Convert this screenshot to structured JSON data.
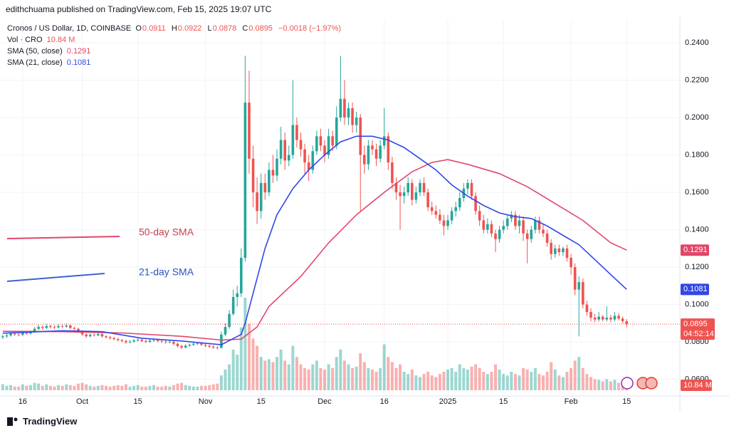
{
  "header": {
    "text": "edithchuama published on TradingView.com, Feb 15, 2025 19:07 UTC"
  },
  "chart_data": {
    "type": "candlestick",
    "title": "Cronos / US Dollar, 1D, COINBASE",
    "ohlc_labels": [
      "O",
      "H",
      "L",
      "C"
    ],
    "change": "−0.0018 (−1.97%)",
    "up_color": "#26a69a",
    "down_color": "#ef5350",
    "candles": [
      [
        0.0825,
        0.084,
        0.0815,
        0.083
      ],
      [
        0.083,
        0.0845,
        0.0822,
        0.0835
      ],
      [
        0.0835,
        0.0852,
        0.0828,
        0.0845
      ],
      [
        0.0845,
        0.085,
        0.0832,
        0.084
      ],
      [
        0.084,
        0.0848,
        0.083,
        0.0838
      ],
      [
        0.0838,
        0.0858,
        0.0832,
        0.085
      ],
      [
        0.085,
        0.0855,
        0.0838,
        0.0845
      ],
      [
        0.0845,
        0.0862,
        0.084,
        0.0855
      ],
      [
        0.0855,
        0.088,
        0.085,
        0.087
      ],
      [
        0.087,
        0.0892,
        0.0862,
        0.088
      ],
      [
        0.088,
        0.0888,
        0.0866,
        0.0875
      ],
      [
        0.0875,
        0.0895,
        0.087,
        0.0885
      ],
      [
        0.0885,
        0.0892,
        0.0872,
        0.088
      ],
      [
        0.088,
        0.089,
        0.0868,
        0.0878
      ],
      [
        0.0878,
        0.0895,
        0.0872,
        0.0885
      ],
      [
        0.0885,
        0.0893,
        0.0874,
        0.0882
      ],
      [
        0.0882,
        0.09,
        0.0876,
        0.0888
      ],
      [
        0.0888,
        0.0893,
        0.0868,
        0.0875
      ],
      [
        0.0875,
        0.0882,
        0.0862,
        0.087
      ],
      [
        0.087,
        0.0876,
        0.0848,
        0.0855
      ],
      [
        0.0855,
        0.0862,
        0.0832,
        0.084
      ],
      [
        0.084,
        0.0846,
        0.0822,
        0.083
      ],
      [
        0.083,
        0.0846,
        0.0825,
        0.0838
      ],
      [
        0.0838,
        0.0845,
        0.0828,
        0.0835
      ],
      [
        0.0835,
        0.085,
        0.083,
        0.0842
      ],
      [
        0.0842,
        0.0848,
        0.0822,
        0.083
      ],
      [
        0.083,
        0.0836,
        0.0818,
        0.0825
      ],
      [
        0.0825,
        0.0832,
        0.0812,
        0.082
      ],
      [
        0.082,
        0.0828,
        0.0808,
        0.0815
      ],
      [
        0.0815,
        0.0822,
        0.0802,
        0.081
      ],
      [
        0.081,
        0.0816,
        0.0798,
        0.0805
      ],
      [
        0.0805,
        0.0812,
        0.079,
        0.0798
      ],
      [
        0.0798,
        0.081,
        0.0792,
        0.0802
      ],
      [
        0.0802,
        0.0815,
        0.0796,
        0.0808
      ],
      [
        0.0808,
        0.082,
        0.0802,
        0.0812
      ],
      [
        0.0812,
        0.0818,
        0.0798,
        0.0805
      ],
      [
        0.0805,
        0.0812,
        0.0794,
        0.08
      ],
      [
        0.08,
        0.0815,
        0.0795,
        0.0807
      ],
      [
        0.0807,
        0.0818,
        0.08,
        0.081
      ],
      [
        0.081,
        0.0815,
        0.0798,
        0.0805
      ],
      [
        0.0805,
        0.0812,
        0.0795,
        0.0802
      ],
      [
        0.0802,
        0.0808,
        0.079,
        0.0798
      ],
      [
        0.0798,
        0.0808,
        0.0792,
        0.08
      ],
      [
        0.08,
        0.0805,
        0.0782,
        0.079
      ],
      [
        0.079,
        0.0796,
        0.077,
        0.0778
      ],
      [
        0.0778,
        0.0785,
        0.0762,
        0.077
      ],
      [
        0.077,
        0.0788,
        0.0765,
        0.078
      ],
      [
        0.078,
        0.0792,
        0.0775,
        0.0785
      ],
      [
        0.0785,
        0.0798,
        0.0778,
        0.079
      ],
      [
        0.079,
        0.08,
        0.0784,
        0.0792
      ],
      [
        0.0792,
        0.0798,
        0.0778,
        0.0785
      ],
      [
        0.0785,
        0.079,
        0.0772,
        0.078
      ],
      [
        0.078,
        0.0786,
        0.0768,
        0.0775
      ],
      [
        0.0775,
        0.0782,
        0.0762,
        0.077
      ],
      [
        0.077,
        0.0778,
        0.076,
        0.0768
      ],
      [
        0.0768,
        0.0855,
        0.0765,
        0.084
      ],
      [
        0.084,
        0.09,
        0.083,
        0.088
      ],
      [
        0.088,
        0.097,
        0.087,
        0.095
      ],
      [
        0.095,
        0.108,
        0.094,
        0.104
      ],
      [
        0.104,
        0.11,
        0.099,
        0.106
      ],
      [
        0.106,
        0.13,
        0.104,
        0.125
      ],
      [
        0.125,
        0.233,
        0.123,
        0.208
      ],
      [
        0.208,
        0.225,
        0.17,
        0.178
      ],
      [
        0.178,
        0.185,
        0.152,
        0.16
      ],
      [
        0.16,
        0.168,
        0.143,
        0.15
      ],
      [
        0.15,
        0.17,
        0.146,
        0.165
      ],
      [
        0.165,
        0.17,
        0.156,
        0.16
      ],
      [
        0.16,
        0.176,
        0.158,
        0.172
      ],
      [
        0.172,
        0.18,
        0.165,
        0.169
      ],
      [
        0.169,
        0.183,
        0.166,
        0.178
      ],
      [
        0.178,
        0.195,
        0.175,
        0.188
      ],
      [
        0.188,
        0.192,
        0.172,
        0.177
      ],
      [
        0.177,
        0.185,
        0.174,
        0.18
      ],
      [
        0.18,
        0.22,
        0.178,
        0.196
      ],
      [
        0.196,
        0.2,
        0.184,
        0.188
      ],
      [
        0.188,
        0.192,
        0.179,
        0.183
      ],
      [
        0.183,
        0.186,
        0.17,
        0.176
      ],
      [
        0.176,
        0.18,
        0.166,
        0.172
      ],
      [
        0.172,
        0.185,
        0.17,
        0.182
      ],
      [
        0.182,
        0.193,
        0.18,
        0.19
      ],
      [
        0.19,
        0.194,
        0.182,
        0.185
      ],
      [
        0.185,
        0.188,
        0.176,
        0.18
      ],
      [
        0.18,
        0.194,
        0.178,
        0.19
      ],
      [
        0.19,
        0.193,
        0.182,
        0.185
      ],
      [
        0.185,
        0.206,
        0.183,
        0.2
      ],
      [
        0.2,
        0.233,
        0.198,
        0.21
      ],
      [
        0.21,
        0.22,
        0.196,
        0.2
      ],
      [
        0.2,
        0.208,
        0.196,
        0.205
      ],
      [
        0.205,
        0.208,
        0.192,
        0.196
      ],
      [
        0.196,
        0.203,
        0.192,
        0.2
      ],
      [
        0.2,
        0.202,
        0.15,
        0.18
      ],
      [
        0.18,
        0.185,
        0.17,
        0.175
      ],
      [
        0.175,
        0.188,
        0.172,
        0.185
      ],
      [
        0.185,
        0.188,
        0.18,
        0.183
      ],
      [
        0.183,
        0.186,
        0.174,
        0.178
      ],
      [
        0.178,
        0.188,
        0.176,
        0.185
      ],
      [
        0.185,
        0.205,
        0.183,
        0.19
      ],
      [
        0.19,
        0.192,
        0.172,
        0.176
      ],
      [
        0.176,
        0.179,
        0.162,
        0.165
      ],
      [
        0.165,
        0.168,
        0.156,
        0.16
      ],
      [
        0.16,
        0.164,
        0.14,
        0.158
      ],
      [
        0.158,
        0.163,
        0.154,
        0.16
      ],
      [
        0.16,
        0.168,
        0.158,
        0.165
      ],
      [
        0.165,
        0.167,
        0.153,
        0.156
      ],
      [
        0.156,
        0.163,
        0.154,
        0.16
      ],
      [
        0.16,
        0.167,
        0.158,
        0.165
      ],
      [
        0.165,
        0.168,
        0.158,
        0.16
      ],
      [
        0.16,
        0.162,
        0.15,
        0.152
      ],
      [
        0.152,
        0.155,
        0.148,
        0.15
      ],
      [
        0.15,
        0.153,
        0.146,
        0.148
      ],
      [
        0.148,
        0.151,
        0.143,
        0.145
      ],
      [
        0.145,
        0.148,
        0.137,
        0.142
      ],
      [
        0.142,
        0.148,
        0.14,
        0.145
      ],
      [
        0.145,
        0.152,
        0.143,
        0.15
      ],
      [
        0.15,
        0.155,
        0.147,
        0.152
      ],
      [
        0.152,
        0.16,
        0.15,
        0.157
      ],
      [
        0.157,
        0.165,
        0.155,
        0.162
      ],
      [
        0.162,
        0.167,
        0.159,
        0.165
      ],
      [
        0.165,
        0.167,
        0.156,
        0.158
      ],
      [
        0.158,
        0.16,
        0.148,
        0.15
      ],
      [
        0.15,
        0.153,
        0.142,
        0.145
      ],
      [
        0.145,
        0.148,
        0.138,
        0.14
      ],
      [
        0.14,
        0.146,
        0.138,
        0.143
      ],
      [
        0.143,
        0.145,
        0.136,
        0.138
      ],
      [
        0.138,
        0.14,
        0.128,
        0.135
      ],
      [
        0.135,
        0.142,
        0.133,
        0.14
      ],
      [
        0.14,
        0.145,
        0.138,
        0.142
      ],
      [
        0.142,
        0.148,
        0.14,
        0.146
      ],
      [
        0.146,
        0.15,
        0.144,
        0.148
      ],
      [
        0.148,
        0.15,
        0.14,
        0.142
      ],
      [
        0.142,
        0.148,
        0.138,
        0.145
      ],
      [
        0.145,
        0.147,
        0.134,
        0.138
      ],
      [
        0.138,
        0.14,
        0.122,
        0.135
      ],
      [
        0.135,
        0.142,
        0.133,
        0.14
      ],
      [
        0.14,
        0.147,
        0.138,
        0.145
      ],
      [
        0.145,
        0.147,
        0.138,
        0.14
      ],
      [
        0.14,
        0.143,
        0.136,
        0.138
      ],
      [
        0.138,
        0.14,
        0.131,
        0.133
      ],
      [
        0.133,
        0.135,
        0.124,
        0.127
      ],
      [
        0.127,
        0.132,
        0.125,
        0.13
      ],
      [
        0.13,
        0.132,
        0.126,
        0.128
      ],
      [
        0.128,
        0.131,
        0.126,
        0.13
      ],
      [
        0.13,
        0.132,
        0.123,
        0.125
      ],
      [
        0.125,
        0.127,
        0.116,
        0.12
      ],
      [
        0.12,
        0.122,
        0.105,
        0.108
      ],
      [
        0.108,
        0.115,
        0.083,
        0.112
      ],
      [
        0.112,
        0.114,
        0.098,
        0.1
      ],
      [
        0.1,
        0.102,
        0.094,
        0.096
      ],
      [
        0.096,
        0.098,
        0.091,
        0.093
      ],
      [
        0.093,
        0.095,
        0.0905,
        0.092
      ],
      [
        0.092,
        0.096,
        0.091,
        0.0935
      ],
      [
        0.0935,
        0.0945,
        0.091,
        0.092
      ],
      [
        0.092,
        0.099,
        0.091,
        0.093
      ],
      [
        0.093,
        0.0945,
        0.0905,
        0.092
      ],
      [
        0.092,
        0.096,
        0.091,
        0.094
      ],
      [
        0.094,
        0.0955,
        0.0915,
        0.0925
      ],
      [
        0.0925,
        0.0935,
        0.09,
        0.0911
      ],
      [
        0.0911,
        0.0922,
        0.0878,
        0.0895
      ]
    ],
    "volume": {
      "name": "Vol · CRO",
      "last_label": "10.84 M",
      "values": [
        8,
        6,
        7,
        5,
        5,
        8,
        6,
        7,
        10,
        9,
        6,
        8,
        6,
        5,
        7,
        6,
        8,
        7,
        6,
        9,
        10,
        8,
        6,
        5,
        6,
        7,
        6,
        5,
        6,
        7,
        6,
        8,
        5,
        6,
        7,
        5,
        5,
        6,
        7,
        5,
        5,
        6,
        5,
        7,
        9,
        10,
        7,
        6,
        5,
        5,
        6,
        6,
        7,
        8,
        9,
        20,
        28,
        35,
        55,
        48,
        85,
        125,
        90,
        70,
        60,
        45,
        40,
        42,
        38,
        45,
        55,
        40,
        35,
        60,
        45,
        35,
        30,
        28,
        35,
        40,
        30,
        28,
        35,
        30,
        45,
        55,
        40,
        35,
        30,
        32,
        50,
        38,
        30,
        28,
        25,
        30,
        62,
        45,
        38,
        30,
        35,
        25,
        22,
        28,
        20,
        18,
        22,
        25,
        20,
        18,
        22,
        25,
        28,
        30,
        25,
        35,
        30,
        28,
        32,
        35,
        30,
        25,
        22,
        25,
        35,
        28,
        22,
        20,
        25,
        22,
        20,
        30,
        28,
        25,
        30,
        22,
        20,
        25,
        38,
        28,
        20,
        18,
        25,
        30,
        40,
        45,
        30,
        22,
        18,
        15,
        14,
        12,
        15,
        12,
        14,
        10,
        11,
        10.84
      ]
    },
    "series": [
      {
        "name": "SMA (50, close)",
        "color": "#e2466a",
        "x": [
          0,
          15,
          30,
          45,
          55,
          60,
          64,
          67,
          71,
          75,
          82,
          89,
          96,
          103,
          108,
          112,
          117,
          125,
          132,
          139,
          146,
          153,
          157
        ],
        "values": [
          0.0857,
          0.0855,
          0.0848,
          0.083,
          0.081,
          0.0815,
          0.088,
          0.099,
          0.107,
          0.115,
          0.133,
          0.148,
          0.16,
          0.171,
          0.176,
          0.1775,
          0.175,
          0.17,
          0.163,
          0.154,
          0.145,
          0.133,
          0.1291
        ]
      },
      {
        "name": "SMA (21, close)",
        "color": "#3246e6",
        "x": [
          0,
          15,
          25,
          35,
          45,
          55,
          60,
          61,
          63,
          66,
          69,
          73,
          77,
          81,
          85,
          89,
          93,
          97,
          101,
          105,
          109,
          113,
          117,
          121,
          125,
          129,
          133,
          137,
          141,
          145,
          149,
          153,
          157
        ],
        "values": [
          0.0847,
          0.086,
          0.0855,
          0.082,
          0.0805,
          0.0785,
          0.084,
          0.09,
          0.106,
          0.13,
          0.148,
          0.162,
          0.172,
          0.18,
          0.187,
          0.19,
          0.19,
          0.188,
          0.184,
          0.178,
          0.172,
          0.164,
          0.158,
          0.153,
          0.149,
          0.147,
          0.146,
          0.142,
          0.137,
          0.132,
          0.124,
          0.116,
          0.1081
        ]
      }
    ],
    "annotations": [
      "50-day SMA",
      "21-day SMA"
    ],
    "countdown": "04:52:14",
    "xlim": [
      -0.7,
      170.4
    ],
    "xticks": [
      {
        "value": 5,
        "label": "16"
      },
      {
        "value": 20,
        "label": "Oct"
      },
      {
        "value": 34,
        "label": "15"
      },
      {
        "value": 51,
        "label": "Nov"
      },
      {
        "value": 65,
        "label": "15"
      },
      {
        "value": 81,
        "label": "Dec"
      },
      {
        "value": 96,
        "label": "16"
      },
      {
        "value": 112,
        "label": "2025"
      },
      {
        "value": 126,
        "label": "15"
      },
      {
        "value": 143,
        "label": "Feb"
      },
      {
        "value": 157,
        "label": "15"
      }
    ],
    "ylim": [
      0.0511,
      0.2522
    ],
    "yticks": [
      {
        "value": 0.24,
        "label": "0.2400"
      },
      {
        "value": 0.22,
        "label": "0.2200"
      },
      {
        "value": 0.2,
        "label": "0.2000"
      },
      {
        "value": 0.18,
        "label": "0.1800"
      },
      {
        "value": 0.16,
        "label": "0.1600"
      },
      {
        "value": 0.14,
        "label": "0.1400"
      },
      {
        "value": 0.12,
        "label": "0.1200"
      },
      {
        "value": 0.1,
        "label": "0.1000"
      },
      {
        "value": 0.08,
        "label": "0.0800"
      },
      {
        "value": 0.06,
        "label": "0.0600"
      }
    ],
    "grid": true
  },
  "footer": {
    "brand": "TradingView"
  }
}
